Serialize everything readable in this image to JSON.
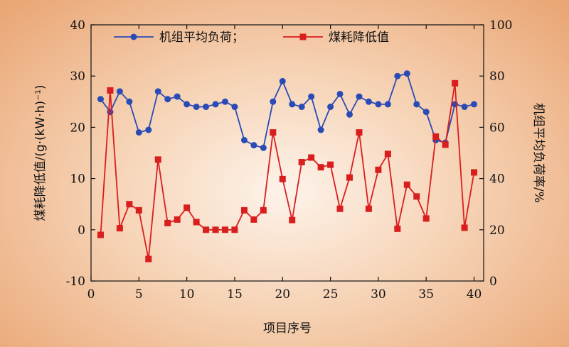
{
  "chart_data": {
    "type": "line",
    "xlabel": "项目序号",
    "ylabel_left": "煤耗降低值/(g·(kW·h)⁻¹)",
    "ylabel_right": "机组平均负荷率/%",
    "xlim": [
      0,
      41
    ],
    "ylim_left": [
      -10,
      40
    ],
    "ylim_right": [
      0,
      100
    ],
    "x_ticks": [
      0,
      5,
      10,
      15,
      20,
      25,
      30,
      35,
      40
    ],
    "y_ticks_left": [
      -10,
      0,
      10,
      20,
      30,
      40
    ],
    "y_ticks_right": [
      0,
      20,
      40,
      60,
      80,
      100
    ],
    "x_tick_labels": [
      "0",
      "5",
      "10",
      "15",
      "20",
      "25",
      "30",
      "35",
      "40"
    ],
    "y_tick_labels_left": [
      "-10",
      "0",
      "10",
      "20",
      "30",
      "40"
    ],
    "y_tick_labels_right": [
      "0",
      "20",
      "40",
      "60",
      "80",
      "100"
    ],
    "grid": false,
    "legend_position": "top",
    "x": [
      1,
      2,
      3,
      4,
      5,
      6,
      7,
      8,
      9,
      10,
      11,
      12,
      13,
      14,
      15,
      16,
      17,
      18,
      19,
      20,
      21,
      22,
      23,
      24,
      25,
      26,
      27,
      28,
      29,
      30,
      31,
      32,
      33,
      34,
      35,
      36,
      37,
      38,
      39,
      40
    ],
    "series": [
      {
        "name": "机组平均负荷；",
        "axis": "right",
        "color": "#2a4bb5",
        "marker": "circle",
        "values": [
          71,
          66,
          74,
          70,
          58,
          59,
          74,
          71,
          72,
          69,
          68,
          68,
          69,
          70,
          68,
          55,
          53,
          52,
          70,
          78,
          69,
          68,
          72,
          59,
          68,
          73,
          65,
          72,
          70,
          69,
          69,
          80,
          81,
          69,
          66,
          55,
          54,
          69,
          68,
          69
        ]
      },
      {
        "name": "煤耗降低值",
        "axis": "left",
        "color": "#d91e1e",
        "marker": "square",
        "values": [
          -1.0,
          27.2,
          0.3,
          5.0,
          3.8,
          -5.7,
          13.7,
          1.3,
          2.0,
          4.3,
          1.5,
          0.0,
          0.0,
          0.0,
          0.0,
          3.8,
          2.0,
          3.8,
          19.0,
          9.9,
          1.9,
          13.2,
          14.1,
          12.2,
          12.7,
          4.1,
          10.2,
          19.0,
          4.1,
          11.7,
          14.8,
          0.2,
          8.8,
          6.5,
          2.2,
          18.2,
          16.6,
          28.6,
          0.4,
          11.2
        ]
      }
    ]
  }
}
